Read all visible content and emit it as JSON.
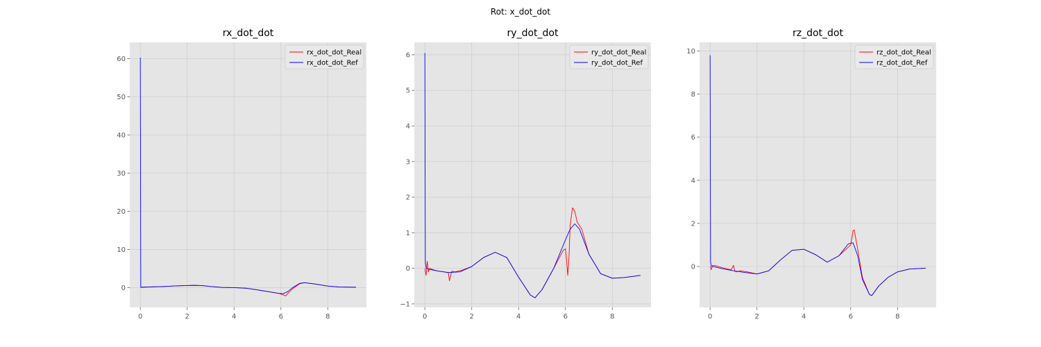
{
  "figure": {
    "suptitle": "Rot: x_dot_dot"
  },
  "style": {
    "panel_bg": "#e5e5e5",
    "grid": "#d0d0d0",
    "real_color": "#ff0000",
    "ref_color": "#0000ff"
  },
  "chart_data": [
    {
      "type": "line",
      "title": "rx_dot_dot",
      "xlim": [
        -0.45,
        9.65
      ],
      "ylim": [
        -5.2,
        64.3
      ],
      "xticks": [
        0,
        2,
        4,
        6,
        8
      ],
      "yticks": [
        0,
        10,
        20,
        30,
        40,
        50,
        60
      ],
      "legend": "top-right",
      "series": [
        {
          "name": "rx_dot_dot_Real",
          "color": "#ff0000",
          "x": [
            0,
            0.05,
            0.5,
            1,
            1.5,
            2,
            2.3,
            2.7,
            3,
            3.5,
            4,
            4.5,
            5,
            5.5,
            5.9,
            6.1,
            6.2,
            6.3,
            6.5,
            6.8,
            7.0,
            7.5,
            8,
            8.5,
            9.2
          ],
          "y": [
            0,
            0.1,
            0.2,
            0.3,
            0.45,
            0.55,
            0.6,
            0.5,
            0.3,
            0.05,
            0.0,
            -0.15,
            -0.6,
            -1.1,
            -1.5,
            -1.9,
            -2.2,
            -1.5,
            -0.3,
            1.0,
            1.3,
            0.9,
            0.4,
            0.15,
            0.1
          ]
        },
        {
          "name": "rx_dot_dot_Ref",
          "color": "#0000ff",
          "x": [
            0,
            0.02,
            0.06,
            0.5,
            1,
            1.5,
            2,
            2.3,
            2.7,
            3,
            3.5,
            4,
            4.5,
            5,
            5.5,
            5.9,
            6.1,
            6.3,
            6.5,
            6.8,
            7.0,
            7.5,
            8,
            8.5,
            9.2
          ],
          "y": [
            60.3,
            0.2,
            0.1,
            0.2,
            0.3,
            0.45,
            0.55,
            0.6,
            0.5,
            0.3,
            0.05,
            0.0,
            -0.15,
            -0.6,
            -1.1,
            -1.5,
            -1.6,
            -1.0,
            0.0,
            1.1,
            1.3,
            0.9,
            0.4,
            0.15,
            0.1
          ]
        }
      ]
    },
    {
      "type": "line",
      "title": "ry_dot_dot",
      "xlim": [
        -0.45,
        9.65
      ],
      "ylim": [
        -1.1,
        6.35
      ],
      "xticks": [
        0,
        2,
        4,
        6,
        8
      ],
      "yticks": [
        -1,
        0,
        1,
        2,
        3,
        4,
        5,
        6
      ],
      "legend": "top-right",
      "series": [
        {
          "name": "ry_dot_dot_Real",
          "color": "#ff0000",
          "x": [
            0,
            0.05,
            0.1,
            0.15,
            0.2,
            0.4,
            0.6,
            0.8,
            1.0,
            1.05,
            1.1,
            1.15,
            1.3,
            1.6,
            2.0,
            2.5,
            3.0,
            3.5,
            4.0,
            4.5,
            4.7,
            5.0,
            5.5,
            5.9,
            6.0,
            6.05,
            6.1,
            6.15,
            6.2,
            6.3,
            6.4,
            6.5,
            6.7,
            7.0,
            7.5,
            8.0,
            8.5,
            9.2
          ],
          "y": [
            0.0,
            -0.2,
            0.2,
            -0.1,
            0.0,
            -0.05,
            -0.08,
            -0.1,
            -0.12,
            -0.35,
            -0.2,
            -0.08,
            -0.1,
            -0.05,
            0.05,
            0.3,
            0.45,
            0.3,
            -0.25,
            -0.75,
            -0.83,
            -0.6,
            0.0,
            0.5,
            0.55,
            0.2,
            -0.2,
            0.3,
            1.2,
            1.7,
            1.6,
            1.3,
            1.1,
            0.4,
            -0.15,
            -0.28,
            -0.26,
            -0.2
          ]
        },
        {
          "name": "ry_dot_dot_Ref",
          "color": "#0000ff",
          "x": [
            0,
            0.02,
            0.06,
            0.2,
            0.5,
            1.0,
            1.5,
            2.0,
            2.5,
            3.0,
            3.5,
            4.0,
            4.5,
            4.7,
            5.0,
            5.5,
            6.0,
            6.2,
            6.4,
            6.6,
            7.0,
            7.5,
            8.0,
            8.5,
            9.2
          ],
          "y": [
            6.05,
            0.15,
            0.0,
            -0.03,
            -0.07,
            -0.12,
            -0.1,
            0.05,
            0.3,
            0.45,
            0.3,
            -0.25,
            -0.75,
            -0.83,
            -0.6,
            0.0,
            0.8,
            1.1,
            1.25,
            1.1,
            0.4,
            -0.15,
            -0.28,
            -0.26,
            -0.2
          ]
        }
      ]
    },
    {
      "type": "line",
      "title": "rz_dot_dot",
      "xlim": [
        -0.45,
        9.65
      ],
      "ylim": [
        -1.9,
        10.4
      ],
      "xticks": [
        0,
        2,
        4,
        6,
        8
      ],
      "yticks": [
        0,
        2,
        4,
        6,
        8,
        10
      ],
      "legend": "top-right",
      "series": [
        {
          "name": "rz_dot_dot_Real",
          "color": "#ff0000",
          "x": [
            0,
            0.05,
            0.1,
            0.2,
            0.5,
            0.9,
            1.0,
            1.05,
            1.1,
            1.3,
            1.6,
            2.0,
            2.5,
            3.0,
            3.5,
            4.0,
            4.5,
            5.0,
            5.5,
            5.9,
            6.0,
            6.1,
            6.15,
            6.3,
            6.5,
            6.8,
            6.9,
            7.2,
            7.6,
            8.0,
            8.5,
            9.2
          ],
          "y": [
            0.0,
            -0.15,
            0.05,
            0.05,
            -0.05,
            -0.15,
            0.05,
            -0.2,
            -0.25,
            -0.2,
            -0.25,
            -0.35,
            -0.2,
            0.3,
            0.75,
            0.8,
            0.55,
            0.2,
            0.5,
            0.9,
            1.0,
            1.65,
            1.7,
            0.8,
            -0.5,
            -1.3,
            -1.35,
            -0.9,
            -0.5,
            -0.25,
            -0.12,
            -0.08
          ]
        },
        {
          "name": "rz_dot_dot_Ref",
          "color": "#0000ff",
          "x": [
            0,
            0.02,
            0.06,
            0.2,
            0.5,
            1.0,
            1.5,
            2.0,
            2.5,
            3.0,
            3.5,
            4.0,
            4.5,
            5.0,
            5.5,
            5.9,
            6.1,
            6.3,
            6.5,
            6.8,
            6.9,
            7.2,
            7.6,
            8.0,
            8.5,
            9.2
          ],
          "y": [
            9.8,
            0.2,
            0.0,
            -0.02,
            -0.1,
            -0.2,
            -0.28,
            -0.35,
            -0.2,
            0.3,
            0.75,
            0.8,
            0.55,
            0.2,
            0.5,
            1.05,
            1.1,
            0.5,
            -0.6,
            -1.3,
            -1.35,
            -0.9,
            -0.5,
            -0.25,
            -0.12,
            -0.08
          ]
        }
      ]
    }
  ]
}
